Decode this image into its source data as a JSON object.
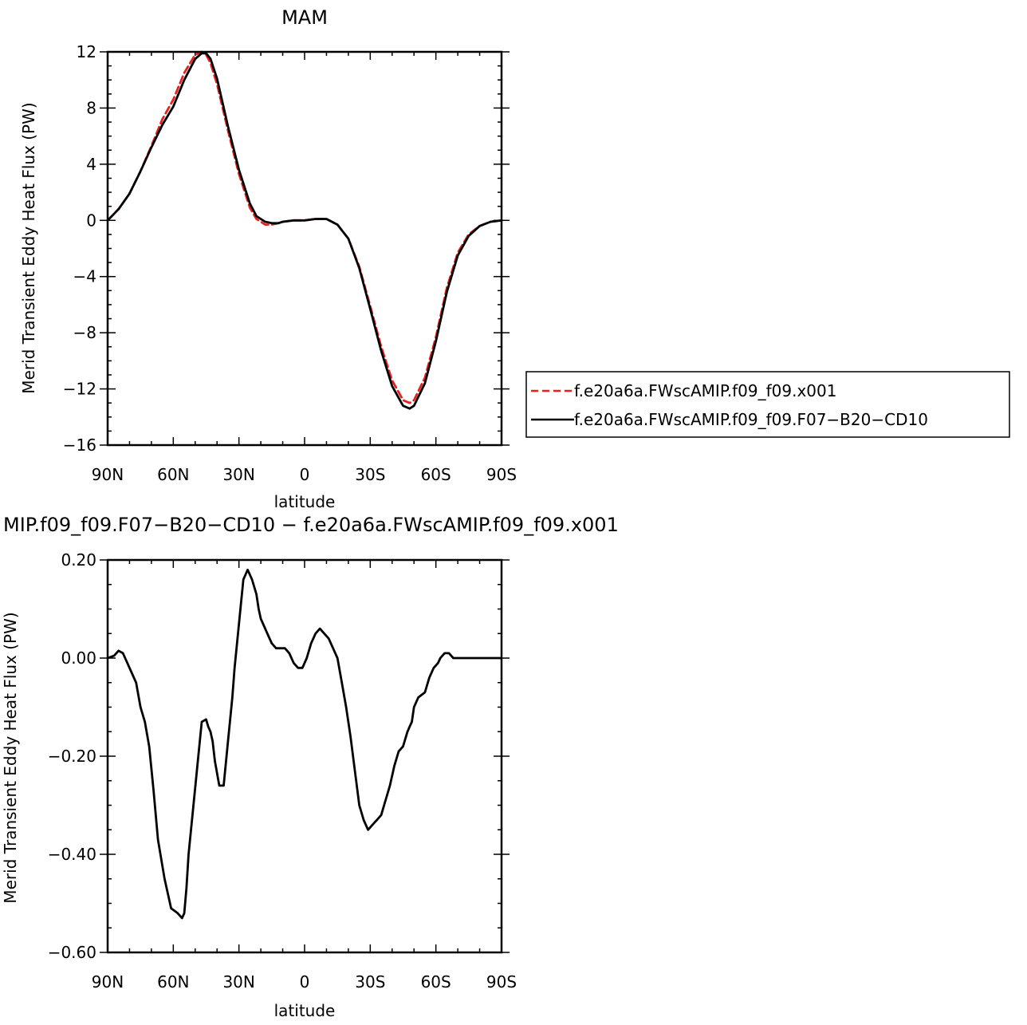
{
  "chart_data": [
    {
      "type": "line",
      "title": "MAM",
      "xlabel": "latitude",
      "ylabel": "Merid Transient Eddy Heat Flux (PW)",
      "xlim": [
        90,
        -90
      ],
      "ylim": [
        -16,
        12
      ],
      "xtick_labels": [
        "90N",
        "60N",
        "30N",
        "0",
        "30S",
        "60S",
        "90S"
      ],
      "ytick_labels": [
        "12",
        "8",
        "4",
        "0",
        "−4",
        "−8",
        "−12",
        "−16"
      ],
      "legend": "right",
      "series": [
        {
          "name": "f.e20a6a.FWscAMIP.f09_f09.x001",
          "color": "#e8201e",
          "dash": "dashed",
          "x": [
            90,
            85,
            80,
            75,
            70,
            65,
            60,
            55,
            50,
            47,
            45,
            43,
            40,
            35,
            30,
            25,
            22,
            18,
            15,
            12,
            10,
            5,
            0,
            -5,
            -10,
            -15,
            -20,
            -25,
            -30,
            -35,
            -40,
            -45,
            -48,
            -50,
            -55,
            -60,
            -65,
            -70,
            -75,
            -80,
            -85,
            -90
          ],
          "y": [
            0,
            0.8,
            1.9,
            3.5,
            5.3,
            7.2,
            8.6,
            10.5,
            11.8,
            12.0,
            11.8,
            11.2,
            9.7,
            6.4,
            3.3,
            0.9,
            0.1,
            -0.3,
            -0.3,
            -0.2,
            -0.1,
            0.0,
            0.0,
            0.1,
            0.1,
            -0.3,
            -1.3,
            -3.3,
            -6.1,
            -9.0,
            -11.4,
            -12.8,
            -13.0,
            -12.8,
            -11.2,
            -8.3,
            -4.8,
            -2.3,
            -1.0,
            -0.4,
            -0.1,
            0
          ]
        },
        {
          "name": "f.e20a6a.FWscAMIP.f09_f09.F07−B20−CD10",
          "color": "#000000",
          "dash": "solid",
          "x": [
            90,
            85,
            80,
            75,
            70,
            65,
            60,
            55,
            50,
            47,
            45,
            43,
            40,
            35,
            30,
            25,
            22,
            18,
            15,
            12,
            10,
            5,
            0,
            -5,
            -10,
            -15,
            -20,
            -25,
            -30,
            -35,
            -40,
            -45,
            -48,
            -50,
            -55,
            -60,
            -65,
            -70,
            -75,
            -80,
            -85,
            -90
          ],
          "y": [
            0,
            0.8,
            1.9,
            3.5,
            5.2,
            6.8,
            8.1,
            10.0,
            11.5,
            11.9,
            11.9,
            11.5,
            10.1,
            6.7,
            3.6,
            1.2,
            0.3,
            -0.1,
            -0.2,
            -0.2,
            -0.1,
            0.0,
            0.0,
            0.1,
            0.1,
            -0.3,
            -1.3,
            -3.4,
            -6.3,
            -9.3,
            -11.8,
            -13.2,
            -13.4,
            -13.2,
            -11.6,
            -8.6,
            -5.1,
            -2.5,
            -1.1,
            -0.4,
            -0.1,
            0
          ]
        }
      ]
    },
    {
      "type": "line",
      "title": "MIP.f09_f09.F07−B20−CD10 − f.e20a6a.FWscAMIP.f09_f09.x001",
      "xlabel": "latitude",
      "ylabel": "Merid Transient Eddy Heat Flux (PW)",
      "xlim": [
        90,
        -90
      ],
      "ylim": [
        -0.6,
        0.2
      ],
      "xtick_labels": [
        "90N",
        "60N",
        "30N",
        "0",
        "30S",
        "60S",
        "90S"
      ],
      "ytick_labels": [
        "0.20",
        "0.00",
        "−0.20",
        "−0.40",
        "−0.60"
      ],
      "series": [
        {
          "color": "#000000",
          "x": [
            90,
            87,
            85,
            83,
            81,
            79,
            77,
            75,
            73,
            71,
            69,
            67,
            64,
            61,
            58,
            56,
            55,
            54,
            53,
            51,
            49,
            47,
            45,
            44,
            43,
            42,
            41,
            39,
            37,
            35,
            33,
            32,
            30,
            28,
            26,
            24,
            22,
            21,
            20,
            19,
            17,
            15,
            13,
            11,
            9,
            7,
            5,
            3,
            1,
            -1,
            -3,
            -5,
            -7,
            -9,
            -11,
            -13,
            -15,
            -17,
            -19,
            -21,
            -23,
            -25,
            -27,
            -29,
            -31,
            -33,
            -35,
            -37,
            -39,
            -41,
            -43,
            -45,
            -47,
            -48,
            -49,
            -50,
            -52,
            -55,
            -57,
            -59,
            -61,
            -62,
            -64,
            -66,
            -68,
            -70,
            -72,
            -74,
            -76,
            -78,
            -80,
            -82,
            -84,
            -85,
            -86,
            -88,
            -90
          ],
          "y": [
            0.0,
            0.005,
            0.015,
            0.01,
            -0.01,
            -0.03,
            -0.05,
            -0.1,
            -0.13,
            -0.18,
            -0.27,
            -0.37,
            -0.45,
            -0.51,
            -0.52,
            -0.53,
            -0.52,
            -0.47,
            -0.4,
            -0.31,
            -0.22,
            -0.13,
            -0.125,
            -0.14,
            -0.15,
            -0.17,
            -0.21,
            -0.26,
            -0.26,
            -0.17,
            -0.08,
            -0.02,
            0.07,
            0.16,
            0.18,
            0.16,
            0.13,
            0.1,
            0.08,
            0.07,
            0.05,
            0.03,
            0.02,
            0.02,
            0.02,
            0.01,
            -0.01,
            -0.02,
            -0.02,
            0.0,
            0.03,
            0.05,
            0.06,
            0.05,
            0.04,
            0.02,
            0.0,
            -0.05,
            -0.1,
            -0.16,
            -0.23,
            -0.3,
            -0.33,
            -0.35,
            -0.34,
            -0.33,
            -0.32,
            -0.29,
            -0.26,
            -0.22,
            -0.19,
            -0.18,
            -0.15,
            -0.14,
            -0.13,
            -0.1,
            -0.08,
            -0.07,
            -0.04,
            -0.02,
            -0.01,
            0.0,
            0.01,
            0.01,
            0.0,
            0.0,
            0.0,
            0.0,
            0.0,
            0.0,
            0.0,
            0.0,
            0.0,
            0.0,
            0.0,
            0.0,
            0.0
          ]
        }
      ]
    }
  ]
}
